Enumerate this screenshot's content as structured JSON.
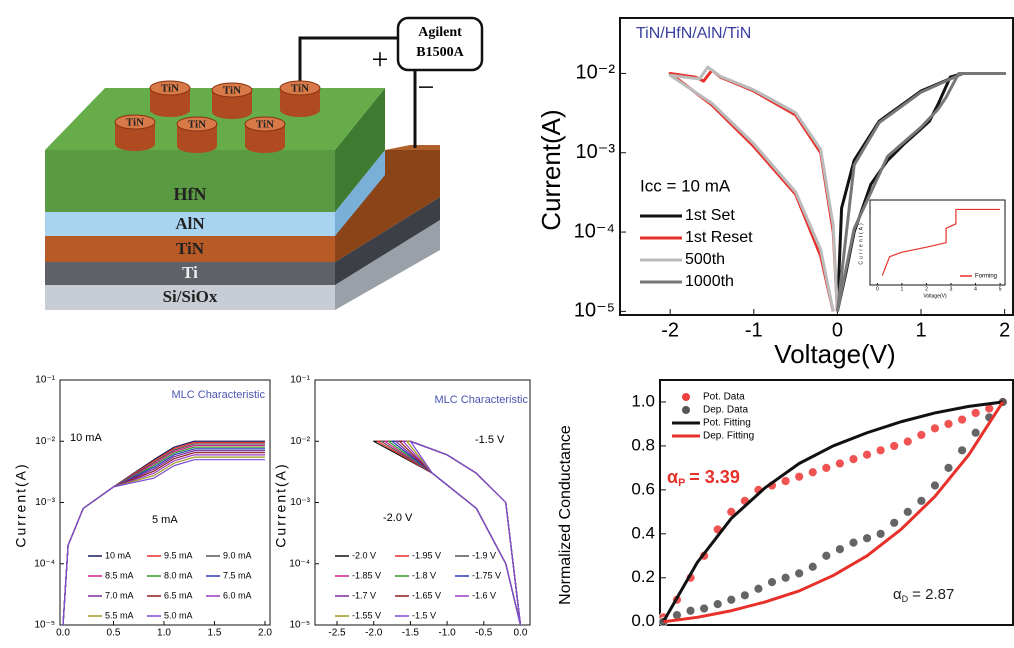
{
  "diagram": {
    "instrument": [
      "Agilent",
      "B1500A"
    ],
    "plus": "+",
    "minus": "−",
    "electrodes": [
      "TiN",
      "TiN",
      "TiN",
      "TiN",
      "TiN",
      "TiN"
    ],
    "layers": [
      "HfN",
      "AlN",
      "TiN",
      "Ti",
      "Si/SiOx"
    ]
  },
  "chart_data": [
    {
      "type": "line",
      "title": "TiN/HfN/AlN/TiN",
      "xlabel": "Voltage(V)",
      "ylabel": "Current(A)",
      "log_y": true,
      "xlim": [
        -2.6,
        2.1
      ],
      "ylim": [
        9e-06,
        0.05
      ],
      "xticks": [
        -2,
        -1,
        0,
        1,
        2
      ],
      "yticks": [
        {
          "value": 1e-05,
          "label": "10⁻⁵"
        },
        {
          "value": 0.0001,
          "label": "10⁻⁴"
        },
        {
          "value": 0.001,
          "label": "10⁻³"
        },
        {
          "value": 0.01,
          "label": "10⁻²"
        }
      ],
      "annotations": [
        "Icc = 10 mA"
      ],
      "series": [
        {
          "name": "1st Set",
          "color": "#111111",
          "x": [
            0,
            0.1,
            0.2,
            0.4,
            0.6,
            0.8,
            1.0,
            1.1,
            1.2,
            1.35,
            1.5,
            2.0,
            1.5,
            1.0,
            0.5,
            0.2,
            0.05,
            0
          ],
          "values": [
            1e-05,
            3e-05,
            0.0001,
            0.0004,
            0.0008,
            0.0013,
            0.002,
            0.0025,
            0.004,
            0.009,
            0.01,
            0.01,
            0.01,
            0.006,
            0.0025,
            0.0008,
            0.0002,
            1e-05
          ]
        },
        {
          "name": "1st Reset",
          "color": "#e8302a",
          "x": [
            0,
            -0.05,
            -0.2,
            -0.5,
            -1.0,
            -1.4,
            -1.5,
            -1.6,
            -1.7,
            -2.0,
            -1.5,
            -1.0,
            -0.5,
            -0.2,
            -0.05
          ],
          "values": [
            1e-05,
            0.0001,
            0.001,
            0.003,
            0.006,
            0.009,
            0.011,
            0.008,
            0.009,
            0.01,
            0.004,
            0.0012,
            0.0003,
            5e-05,
            1e-05
          ]
        },
        {
          "name": "500th",
          "color": "#bbbbbb",
          "x": [
            0,
            -0.05,
            -0.2,
            -0.5,
            -1.0,
            -1.4,
            -1.55,
            -1.65,
            -2.0,
            -1.5,
            -1.0,
            -0.5,
            -0.2,
            -0.05
          ],
          "values": [
            1e-05,
            0.00012,
            0.0011,
            0.0032,
            0.0062,
            0.0092,
            0.012,
            0.0085,
            0.0095,
            0.0042,
            0.0013,
            0.00032,
            6e-05,
            1e-05
          ]
        },
        {
          "name": "1000th",
          "color": "#777777",
          "x": [
            0,
            0.2,
            0.6,
            1.0,
            1.2,
            1.3,
            1.45,
            2.0,
            1.5,
            1.0,
            0.5,
            0.2,
            0
          ],
          "values": [
            1e-05,
            0.00011,
            0.0009,
            0.0021,
            0.0035,
            0.005,
            0.01,
            0.01,
            0.01,
            0.0058,
            0.0024,
            0.0007,
            1e-05
          ]
        }
      ]
    },
    {
      "type": "line",
      "xlabel": "Voltage(V)",
      "ylabel": "Current(A)",
      "log_y": true,
      "xlim": [
        -0.3,
        5.2
      ],
      "ylim": [
        1e-10,
        0.1
      ],
      "xticks": [
        0,
        1,
        2,
        3,
        4,
        5
      ],
      "series": [
        {
          "name": "Forming",
          "color": "#e8302a",
          "x": [
            0.2,
            0.5,
            1,
            2,
            2.8,
            2.8,
            3.2,
            3.2,
            5
          ],
          "values": [
            1e-09,
            1e-07,
            3e-07,
            1e-06,
            3e-06,
            0.0001,
            0.0003,
            0.01,
            0.01
          ]
        }
      ]
    },
    {
      "type": "line",
      "title": "MLC Characteristic",
      "ylabel": "Current(A)",
      "log_y": true,
      "xlim": [
        -0.03,
        2.05
      ],
      "ylim": [
        1e-05,
        0.1
      ],
      "xticks": [
        {
          "value": 0,
          "label": "0.0"
        },
        0.5,
        {
          "value": 1,
          "label": "1.0"
        },
        1.5,
        {
          "value": 2,
          "label": "2.0"
        }
      ],
      "yticks": [
        {
          "value": 1e-05,
          "label": "10⁻⁵"
        },
        {
          "value": 0.0001,
          "label": "10⁻⁴"
        },
        {
          "value": 0.001,
          "label": "10⁻³"
        },
        {
          "value": 0.01,
          "label": "10⁻²"
        },
        {
          "value": 0.1,
          "label": "10⁻¹"
        }
      ],
      "annotations": [
        "10 mA",
        "5 mA"
      ],
      "x": [
        0,
        0.05,
        0.2,
        0.5,
        0.9,
        1.1,
        1.3,
        1.5,
        2.0
      ],
      "series": [
        {
          "name": "10 mA",
          "color": "#1a1a5e",
          "values": [
            1e-05,
            0.0002,
            0.0008,
            0.0018,
            0.005,
            0.008,
            0.01,
            0.01,
            0.01
          ]
        },
        {
          "name": "9.5 mA",
          "color": "#e8302a",
          "values": [
            1e-05,
            0.0002,
            0.0008,
            0.0018,
            0.00475,
            0.0076,
            0.0095,
            0.0095,
            0.0095
          ]
        },
        {
          "name": "9.0 mA",
          "color": "#555555",
          "values": [
            1e-05,
            0.0002,
            0.0008,
            0.0018,
            0.0045,
            0.0072,
            0.009,
            0.009,
            0.009
          ]
        },
        {
          "name": "8.5 mA",
          "color": "#d0208a",
          "values": [
            1e-05,
            0.0002,
            0.0008,
            0.0018,
            0.00425,
            0.0068,
            0.0085,
            0.0085,
            0.0085
          ]
        },
        {
          "name": "8.0 mA",
          "color": "#2a9a2a",
          "values": [
            1e-05,
            0.0002,
            0.0008,
            0.0018,
            0.004,
            0.0064,
            0.008,
            0.008,
            0.008
          ]
        },
        {
          "name": "7.5 mA",
          "color": "#2a3ab8",
          "values": [
            1e-05,
            0.0002,
            0.0008,
            0.0018,
            0.00375,
            0.006,
            0.0075,
            0.0075,
            0.0075
          ]
        },
        {
          "name": "7.0 mA",
          "color": "#7a2a9a",
          "values": [
            1e-05,
            0.0002,
            0.0008,
            0.0018,
            0.0035,
            0.0056,
            0.007,
            0.007,
            0.007
          ]
        },
        {
          "name": "6.5 mA",
          "color": "#8a1a1a",
          "values": [
            1e-05,
            0.0002,
            0.0008,
            0.0018,
            0.00325,
            0.0052,
            0.0065,
            0.0065,
            0.0065
          ]
        },
        {
          "name": "6.0 mA",
          "color": "#9a3ac8",
          "values": [
            1e-05,
            0.0002,
            0.0008,
            0.0018,
            0.003,
            0.0048,
            0.006,
            0.006,
            0.006
          ]
        },
        {
          "name": "5.5 mA",
          "color": "#9a9a1a",
          "values": [
            1e-05,
            0.0002,
            0.0008,
            0.0018,
            0.00275,
            0.0044,
            0.0055,
            0.0055,
            0.0055
          ]
        },
        {
          "name": "5.0 mA",
          "color": "#7a4ad8",
          "values": [
            1e-05,
            0.0002,
            0.0008,
            0.0018,
            0.0025,
            0.004,
            0.005,
            0.005,
            0.005
          ]
        }
      ]
    },
    {
      "type": "line",
      "title": "MLC Characteristic",
      "ylabel": "Current(A)",
      "log_y": true,
      "xlim": [
        -2.8,
        0.13
      ],
      "ylim": [
        1e-05,
        0.1
      ],
      "xticks": [
        -2.5,
        {
          "value": -2,
          "label": "-2.0"
        },
        -1.5,
        {
          "value": -1,
          "label": "-1.0"
        },
        -0.5,
        {
          "value": 0,
          "label": "0.0"
        }
      ],
      "yticks": [
        {
          "value": 1e-05,
          "label": "10⁻⁵"
        },
        {
          "value": 0.0001,
          "label": "10⁻⁴"
        },
        {
          "value": 0.001,
          "label": "10⁻³"
        },
        {
          "value": 0.01,
          "label": "10⁻²"
        },
        {
          "value": 0.1,
          "label": "10⁻¹"
        }
      ],
      "annotations": [
        "-1.5 V",
        "-2.0 V"
      ],
      "series": [
        {
          "name": "-2.0 V",
          "color": "#111111",
          "x": [
            0,
            -0.2,
            -0.6,
            -1.0,
            -1.5,
            -2.0,
            -1.2,
            -0.6,
            -0.2,
            0
          ],
          "values": [
            1e-05,
            0.001,
            0.003,
            0.006,
            0.01,
            0.01,
            0.003,
            0.0008,
            0.0001,
            1e-05
          ]
        },
        {
          "name": "-1.95 V",
          "color": "#e8302a",
          "x": [
            0,
            -0.2,
            -0.6,
            -1.0,
            -1.5,
            -1.95,
            -1.2,
            -0.6,
            -0.2,
            0
          ],
          "values": [
            1e-05,
            0.001,
            0.003,
            0.006,
            0.01,
            0.01,
            0.003,
            0.0008,
            0.0001,
            1e-05
          ]
        },
        {
          "name": "-1.9 V",
          "color": "#555555",
          "x": [
            0,
            -0.2,
            -0.6,
            -1.0,
            -1.5,
            -1.9,
            -1.2,
            -0.6,
            -0.2,
            0
          ],
          "values": [
            1e-05,
            0.001,
            0.003,
            0.006,
            0.01,
            0.01,
            0.003,
            0.0008,
            0.0001,
            1e-05
          ]
        },
        {
          "name": "-1.85 V",
          "color": "#d0208a",
          "x": [
            0,
            -0.2,
            -0.6,
            -1.0,
            -1.5,
            -1.85,
            -1.2,
            -0.6,
            -0.2,
            0
          ],
          "values": [
            1e-05,
            0.001,
            0.003,
            0.006,
            0.01,
            0.01,
            0.003,
            0.0008,
            0.0001,
            1e-05
          ]
        },
        {
          "name": "-1.8 V",
          "color": "#2a9a2a",
          "x": [
            0,
            -0.2,
            -0.6,
            -1.0,
            -1.5,
            -1.8,
            -1.2,
            -0.6,
            -0.2,
            0
          ],
          "values": [
            1e-05,
            0.001,
            0.003,
            0.006,
            0.01,
            0.01,
            0.003,
            0.0008,
            0.0001,
            1e-05
          ]
        },
        {
          "name": "-1.75 V",
          "color": "#2a3ab8",
          "x": [
            0,
            -0.2,
            -0.6,
            -1.0,
            -1.5,
            -1.75,
            -1.2,
            -0.6,
            -0.2,
            0
          ],
          "values": [
            1e-05,
            0.001,
            0.003,
            0.006,
            0.01,
            0.01,
            0.003,
            0.0008,
            0.0001,
            1e-05
          ]
        },
        {
          "name": "-1.7 V",
          "color": "#7a2a9a",
          "x": [
            0,
            -0.2,
            -0.6,
            -1.0,
            -1.5,
            -1.7,
            -1.2,
            -0.6,
            -0.2,
            0
          ],
          "values": [
            1e-05,
            0.001,
            0.003,
            0.006,
            0.01,
            0.01,
            0.003,
            0.0008,
            0.0001,
            1e-05
          ]
        },
        {
          "name": "-1.65 V",
          "color": "#8a1a1a",
          "x": [
            0,
            -0.2,
            -0.6,
            -1.0,
            -1.5,
            -1.65,
            -1.2,
            -0.6,
            -0.2,
            0
          ],
          "values": [
            1e-05,
            0.001,
            0.003,
            0.006,
            0.01,
            0.01,
            0.003,
            0.0008,
            0.0001,
            1e-05
          ]
        },
        {
          "name": "-1.6 V",
          "color": "#9a3ac8",
          "x": [
            0,
            -0.2,
            -0.6,
            -1.0,
            -1.5,
            -1.6,
            -1.2,
            -0.6,
            -0.2,
            0
          ],
          "values": [
            1e-05,
            0.001,
            0.003,
            0.006,
            0.01,
            0.01,
            0.003,
            0.0008,
            0.0001,
            1e-05
          ]
        },
        {
          "name": "-1.55 V",
          "color": "#9a9a1a",
          "x": [
            0,
            -0.2,
            -0.6,
            -1.0,
            -1.5,
            -1.55,
            -1.2,
            -0.6,
            -0.2,
            0
          ],
          "values": [
            1e-05,
            0.001,
            0.003,
            0.006,
            0.01,
            0.01,
            0.003,
            0.0008,
            0.0001,
            1e-05
          ]
        },
        {
          "name": "-1.5 V",
          "color": "#7a4ad8",
          "x": [
            0,
            -0.2,
            -0.6,
            -1.0,
            -1.5,
            -1.5,
            -1.2,
            -0.6,
            -0.2,
            0
          ],
          "values": [
            1e-05,
            0.001,
            0.003,
            0.006,
            0.01,
            0.01,
            0.003,
            0.0008,
            0.0001,
            1e-05
          ]
        }
      ]
    },
    {
      "type": "scatter",
      "ylabel": "Normalized Conductance",
      "xlim": [
        -1,
        103
      ],
      "ylim": [
        -0.015,
        1.1
      ],
      "yticks": [
        {
          "value": 0,
          "label": "0.0"
        },
        0.2,
        0.4,
        0.6,
        0.8,
        {
          "value": 1,
          "label": "1.0"
        }
      ],
      "annotations": [
        {
          "symbol": "α",
          "sub": "P",
          "text": "= 3.39"
        },
        {
          "symbol": "α",
          "sub": "D",
          "text": "= 2.87"
        }
      ],
      "x": [
        0,
        4,
        8,
        12,
        16,
        20,
        24,
        28,
        32,
        36,
        40,
        44,
        48,
        52,
        56,
        60,
        64,
        68,
        72,
        76,
        80,
        84,
        88,
        92,
        96,
        100
      ],
      "series": [
        {
          "name": "Pot. Data",
          "color": "#f04040",
          "style": "markers",
          "values": [
            0.02,
            0.1,
            0.2,
            0.3,
            0.42,
            0.5,
            0.55,
            0.6,
            0.62,
            0.64,
            0.66,
            0.68,
            0.7,
            0.72,
            0.74,
            0.76,
            0.78,
            0.8,
            0.82,
            0.85,
            0.88,
            0.9,
            0.92,
            0.95,
            0.97,
            1.0
          ]
        },
        {
          "name": "Dep. Data",
          "color": "#555555",
          "style": "markers",
          "values": [
            0,
            0.03,
            0.05,
            0.06,
            0.08,
            0.1,
            0.12,
            0.15,
            0.18,
            0.2,
            0.22,
            0.25,
            0.3,
            0.33,
            0.36,
            0.38,
            0.4,
            0.45,
            0.5,
            0.55,
            0.62,
            0.7,
            0.78,
            0.86,
            0.93,
            1.0
          ]
        },
        {
          "name": "Pot. Fitting",
          "color": "#111111",
          "style": "line",
          "x": [
            0,
            10,
            20,
            30,
            40,
            50,
            60,
            70,
            80,
            90,
            100
          ],
          "values": [
            0,
            0.27,
            0.47,
            0.61,
            0.72,
            0.8,
            0.86,
            0.91,
            0.95,
            0.98,
            1.0
          ]
        },
        {
          "name": "Dep. Fitting",
          "color": "#e8302a",
          "style": "line",
          "x": [
            0,
            10,
            20,
            30,
            40,
            50,
            60,
            70,
            80,
            90,
            100
          ],
          "values": [
            0,
            0.02,
            0.05,
            0.09,
            0.14,
            0.21,
            0.3,
            0.42,
            0.57,
            0.76,
            1.0
          ]
        }
      ]
    }
  ]
}
